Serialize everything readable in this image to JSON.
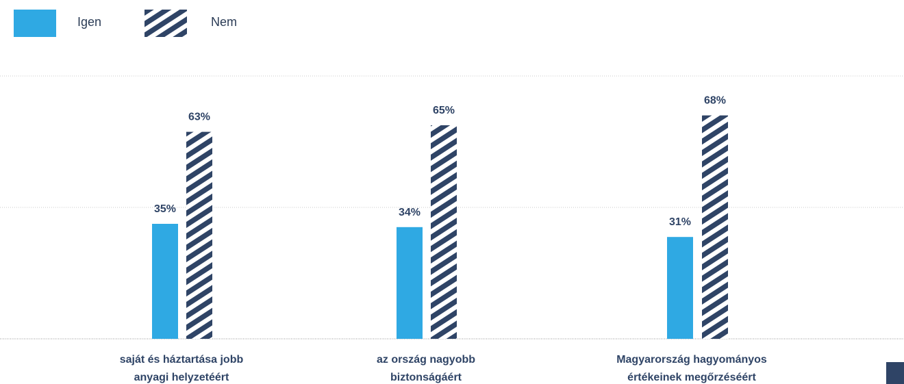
{
  "colors": {
    "igen": "#2fa9e3",
    "nem": "#2f4466",
    "label_text": "#2f4466",
    "grid": "#c8c8c8",
    "baseline": "#a8a8a8"
  },
  "legend": {
    "items": [
      {
        "label": "Igen",
        "pattern": "solid"
      },
      {
        "label": "Nem",
        "pattern": "hatched"
      }
    ]
  },
  "chart_data": {
    "type": "bar",
    "categories": [
      [
        "saját és háztartása jobb",
        "anyagi helyzetéért"
      ],
      [
        "az ország nagyobb",
        "biztonságáért"
      ],
      [
        "Magyarország hagyományos",
        "értékeinek megőrzéséért"
      ]
    ],
    "series": [
      {
        "name": "Igen",
        "values": [
          35,
          34,
          31
        ]
      },
      {
        "name": "Nem",
        "values": [
          63,
          65,
          68
        ]
      }
    ],
    "value_labels": [
      [
        "35%",
        "34%",
        "31%"
      ],
      [
        "63%",
        "65%",
        "68%"
      ]
    ],
    "ylim": [
      0,
      80
    ],
    "grid": true,
    "legend_position": "top-left"
  }
}
